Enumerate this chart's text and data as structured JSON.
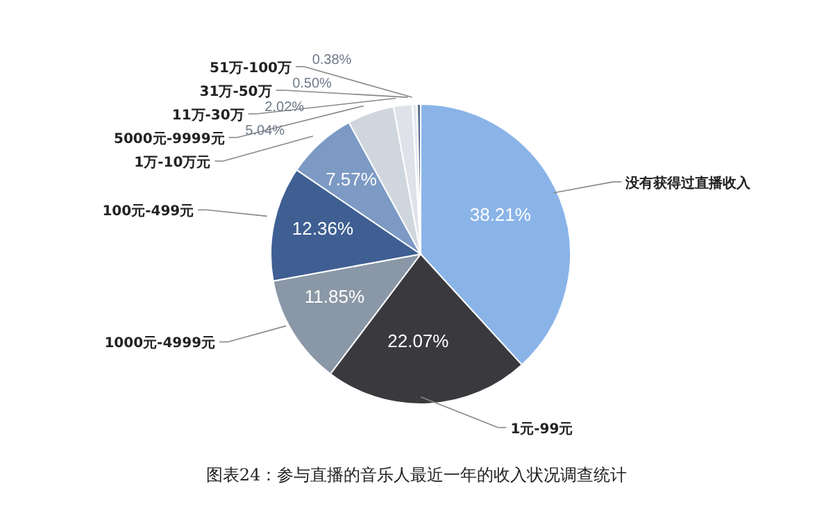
{
  "chart_data": {
    "type": "pie",
    "title": "图表24：参与直播的音乐人最近一年的收入状况调查统计",
    "categories": [
      "没有获得过直播收入",
      "1元-99元",
      "1000元-4999元",
      "100元-499元",
      "1万-10万元",
      "5000元-9999元",
      "11万-30万",
      "31万-50万",
      "51万-100万"
    ],
    "values": [
      38.21,
      22.07,
      11.85,
      12.36,
      7.57,
      5.04,
      2.02,
      0.5,
      0.38
    ],
    "value_labels": [
      "38.21%",
      "22.07%",
      "11.85%",
      "12.36%",
      "7.57%",
      "5.04%",
      "2.02%",
      "0.50%",
      "0.38%"
    ],
    "colors": [
      "#8ab4e8",
      "#3a3a3e",
      "#8a97a6",
      "#3f5f92",
      "#7c9ac4",
      "#d0d6de",
      "#dfe3e9",
      "#e6e9ee",
      "#5a6f8e"
    ]
  }
}
